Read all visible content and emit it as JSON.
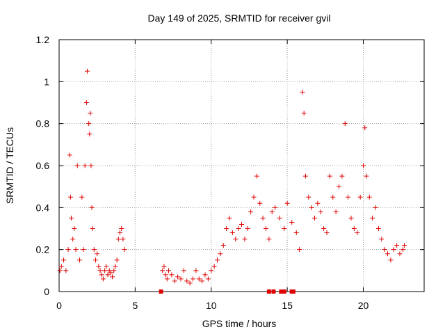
{
  "chart_data": {
    "type": "scatter",
    "title": "Day 149 of 2025, SRMTID for receiver gvil",
    "xlabel": "GPS time / hours",
    "ylabel": "SRMTID / TECUs",
    "xlim": [
      0,
      24
    ],
    "ylim": [
      0,
      1.2
    ],
    "xticks": [
      0,
      5,
      10,
      15,
      20
    ],
    "yticks": [
      0,
      0.2,
      0.4,
      0.6,
      0.8,
      1.0,
      1.2
    ],
    "xtick_labels": [
      "0",
      "5",
      "10",
      "15",
      "20"
    ],
    "ytick_labels": [
      "0",
      "0.2",
      "0.4",
      "0.6",
      "0.8",
      "1",
      "1.2"
    ],
    "grid": true,
    "marker": "+",
    "color": "#e00000",
    "gap_marks_at_zero_hours": [
      6.7,
      13.8,
      14.1,
      14.6,
      14.8,
      15.3,
      15.4
    ],
    "series": [
      {
        "name": "SRMTID",
        "x": [
          0.05,
          0.15,
          0.3,
          0.45,
          0.6,
          0.7,
          0.75,
          0.8,
          0.9,
          1.0,
          1.1,
          1.2,
          1.35,
          1.5,
          1.6,
          1.7,
          1.8,
          1.85,
          1.95,
          2.0,
          2.05,
          2.1,
          2.15,
          2.2,
          2.3,
          2.4,
          2.5,
          2.6,
          2.7,
          2.8,
          2.9,
          3.0,
          3.1,
          3.2,
          3.3,
          3.4,
          3.5,
          3.6,
          3.7,
          3.8,
          3.9,
          4.0,
          4.1,
          4.2,
          4.3,
          6.8,
          6.9,
          7.0,
          7.1,
          7.2,
          7.4,
          7.6,
          7.8,
          8.0,
          8.2,
          8.4,
          8.6,
          8.8,
          9.0,
          9.2,
          9.4,
          9.6,
          9.8,
          10.0,
          10.2,
          10.4,
          10.6,
          10.8,
          11.0,
          11.2,
          11.4,
          11.6,
          11.8,
          12.0,
          12.2,
          12.4,
          12.6,
          12.8,
          13.0,
          13.2,
          13.4,
          13.6,
          13.8,
          14.0,
          14.2,
          14.5,
          14.8,
          15.0,
          15.3,
          15.6,
          15.8,
          16.0,
          16.1,
          16.2,
          16.4,
          16.6,
          16.8,
          17.0,
          17.2,
          17.4,
          17.6,
          17.8,
          18.0,
          18.2,
          18.4,
          18.6,
          18.8,
          19.0,
          19.2,
          19.4,
          19.6,
          19.8,
          20.0,
          20.1,
          20.2,
          20.4,
          20.6,
          20.8,
          21.0,
          21.2,
          21.4,
          21.6,
          21.8,
          22.0,
          22.2,
          22.4,
          22.6,
          22.7
        ],
        "y": [
          0.1,
          0.12,
          0.15,
          0.1,
          0.2,
          0.65,
          0.45,
          0.35,
          0.25,
          0.3,
          0.2,
          0.6,
          0.15,
          0.45,
          0.2,
          0.6,
          0.9,
          1.05,
          0.8,
          0.75,
          0.85,
          0.6,
          0.4,
          0.3,
          0.2,
          0.15,
          0.18,
          0.12,
          0.1,
          0.08,
          0.06,
          0.1,
          0.12,
          0.08,
          0.1,
          0.09,
          0.07,
          0.1,
          0.12,
          0.15,
          0.25,
          0.28,
          0.3,
          0.25,
          0.2,
          0.1,
          0.12,
          0.08,
          0.06,
          0.1,
          0.08,
          0.05,
          0.07,
          0.06,
          0.1,
          0.05,
          0.04,
          0.06,
          0.1,
          0.06,
          0.05,
          0.08,
          0.06,
          0.1,
          0.12,
          0.15,
          0.18,
          0.22,
          0.3,
          0.35,
          0.28,
          0.25,
          0.3,
          0.32,
          0.25,
          0.3,
          0.38,
          0.45,
          0.55,
          0.42,
          0.35,
          0.3,
          0.25,
          0.38,
          0.4,
          0.35,
          0.3,
          0.42,
          0.33,
          0.28,
          0.2,
          0.95,
          0.85,
          0.55,
          0.45,
          0.4,
          0.35,
          0.42,
          0.38,
          0.3,
          0.28,
          0.55,
          0.45,
          0.38,
          0.5,
          0.55,
          0.8,
          0.45,
          0.35,
          0.3,
          0.28,
          0.45,
          0.6,
          0.78,
          0.55,
          0.45,
          0.35,
          0.4,
          0.3,
          0.25,
          0.2,
          0.18,
          0.15,
          0.2,
          0.22,
          0.18,
          0.2,
          0.22
        ]
      }
    ]
  }
}
